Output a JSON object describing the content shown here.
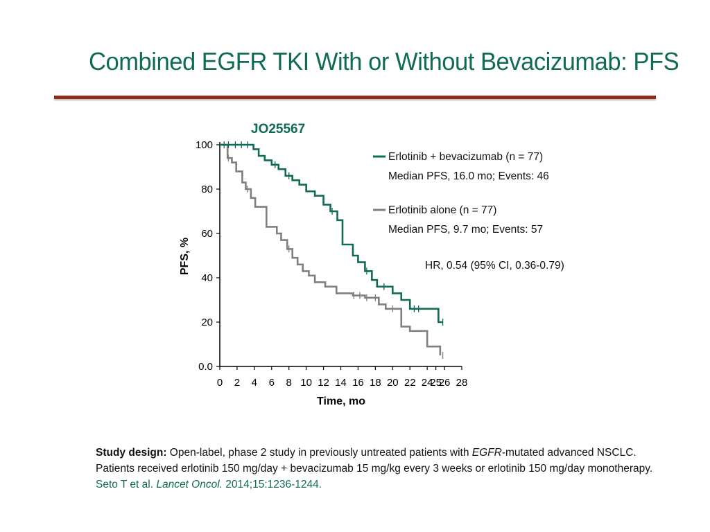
{
  "slide": {
    "title": "Combined EGFR TKI With or Without Bevacizumab: PFS",
    "rule_color": "#8b2e1d",
    "accent_color": "#0f6b55"
  },
  "chart_data": {
    "type": "line",
    "style": "step (Kaplan-Meier)",
    "title": "JO25567",
    "xlabel": "Time, mo",
    "ylabel": "PFS, %",
    "xlim": [
      0,
      28
    ],
    "ylim": [
      0,
      100
    ],
    "x_ticks": [
      "0",
      "2",
      "4",
      "6",
      "8",
      "10",
      "12",
      "14",
      "16",
      "18",
      "20",
      "22",
      "24",
      "25",
      "26",
      "28"
    ],
    "y_ticks": [
      "0.0",
      "20",
      "40",
      "60",
      "80",
      "100"
    ],
    "grid": false,
    "legend_position": "top-right",
    "series": [
      {
        "name": "Erlotinib + bevacizumab (n = 77)",
        "detail": "Median PFS, 16.0 mo; Events: 46",
        "color": "#0f6b55",
        "x": [
          0,
          3.9,
          4.5,
          5.2,
          6.0,
          6.8,
          7.6,
          8.4,
          9.2,
          10.0,
          11.0,
          12.0,
          12.8,
          13.6,
          14.2,
          15.4,
          16.0,
          16.8,
          17.6,
          18.2,
          20.0,
          21.0,
          22.0,
          25.3,
          25.8
        ],
        "y": [
          100,
          98,
          95,
          93,
          91,
          89,
          86,
          84,
          82,
          79,
          77,
          73,
          70,
          66,
          55,
          50,
          47,
          43,
          39,
          36,
          33,
          30,
          26,
          20,
          20
        ],
        "censor_x": [
          0.5,
          1.0,
          1.8,
          2.5,
          3.2,
          6.4,
          8.0,
          13.0,
          17.0,
          19.0,
          22.5,
          23.0,
          25.8
        ],
        "censor_y": [
          100,
          100,
          100,
          100,
          100,
          91,
          86,
          70,
          43,
          36,
          26,
          26,
          20
        ]
      },
      {
        "name": "Erlotinib alone (n = 77)",
        "detail": "Median PFS, 9.7 mo; Events: 57",
        "color": "#7f7f7f",
        "x": [
          0,
          0.9,
          1.4,
          1.9,
          2.6,
          3.0,
          3.6,
          4.1,
          5.4,
          6.6,
          7.1,
          7.8,
          8.4,
          9.0,
          9.6,
          10.3,
          11.0,
          12.2,
          13.5,
          15.4,
          16.8,
          18.4,
          19.2,
          21.0,
          22.0,
          24.0,
          25.5
        ],
        "y": [
          100,
          94,
          92,
          88,
          83,
          80,
          76,
          72,
          63,
          60,
          57,
          53,
          49,
          46,
          43,
          41,
          38,
          36,
          33,
          32,
          31,
          28,
          26,
          18,
          16,
          9,
          5
        ],
        "censor_x": [
          1.0,
          3.2,
          8.0,
          15.5,
          16.2,
          17.0,
          18.0,
          20.0,
          25.8
        ],
        "censor_y": [
          94,
          80,
          53,
          32,
          32,
          31,
          31,
          26,
          5
        ]
      }
    ],
    "annotations": [
      "HR, 0.54 (95% CI, 0.36-0.79)"
    ]
  },
  "footnote": {
    "design_label": "Study design:",
    "design_text_a": " Open-label, phase 2 study in previously untreated patients with ",
    "design_text_italic": "EGFR",
    "design_text_b": "-mutated advanced NSCLC.",
    "line2": "Patients received erlotinib 150 mg/day + bevacizumab 15 mg/kg every 3 weeks or erlotinib 150 mg/day monotherapy.",
    "citation_authors": "Seto T et al. ",
    "citation_journal": "Lancet Oncol.",
    "citation_rest": " 2014;15:1236-1244."
  }
}
